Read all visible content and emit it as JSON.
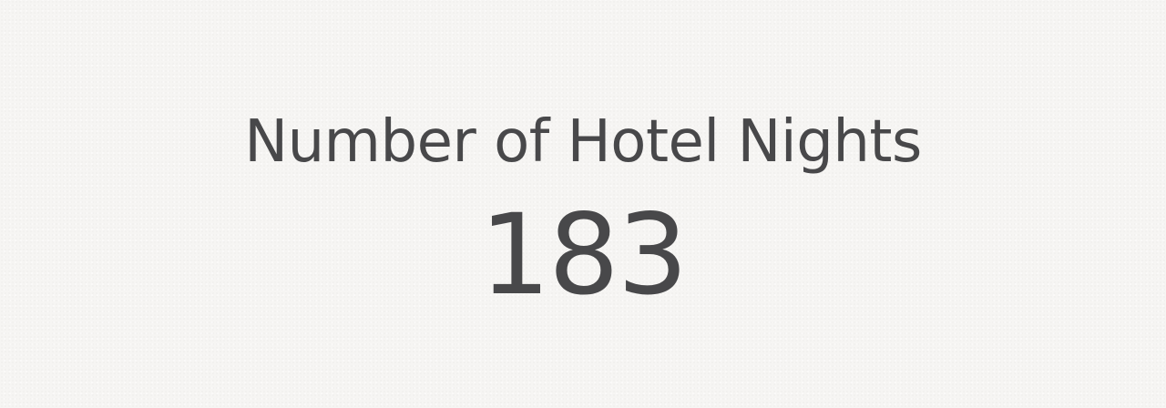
{
  "stat": {
    "label": "Number of Hotel Nights",
    "value": "183"
  },
  "colors": {
    "background": "#f6f5f3",
    "text": "#48484a"
  }
}
